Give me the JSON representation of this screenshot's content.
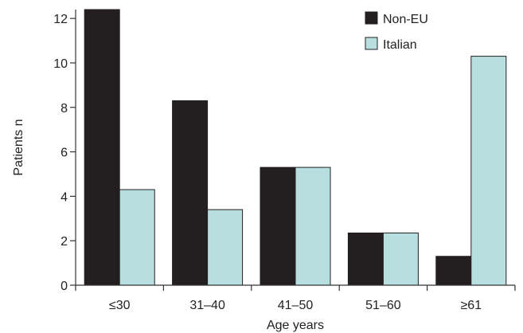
{
  "chart_data": {
    "type": "bar",
    "categories": [
      "≤30",
      "31–40",
      "41–50",
      "51–60",
      "≥61"
    ],
    "series": [
      {
        "name": "Non-EU",
        "values": [
          12.4,
          8.3,
          5.3,
          2.35,
          1.3
        ],
        "color": "#231f20"
      },
      {
        "name": "Italian",
        "values": [
          4.3,
          3.4,
          5.3,
          2.35,
          10.3
        ],
        "color": "#b7dfe0"
      }
    ],
    "xlabel": "Age years",
    "ylabel": "Patients n",
    "ylim": [
      0,
      12.4
    ],
    "yticks": [
      0,
      2,
      4,
      6,
      8,
      10,
      12
    ],
    "legend_position": "top-right",
    "grid": false
  }
}
